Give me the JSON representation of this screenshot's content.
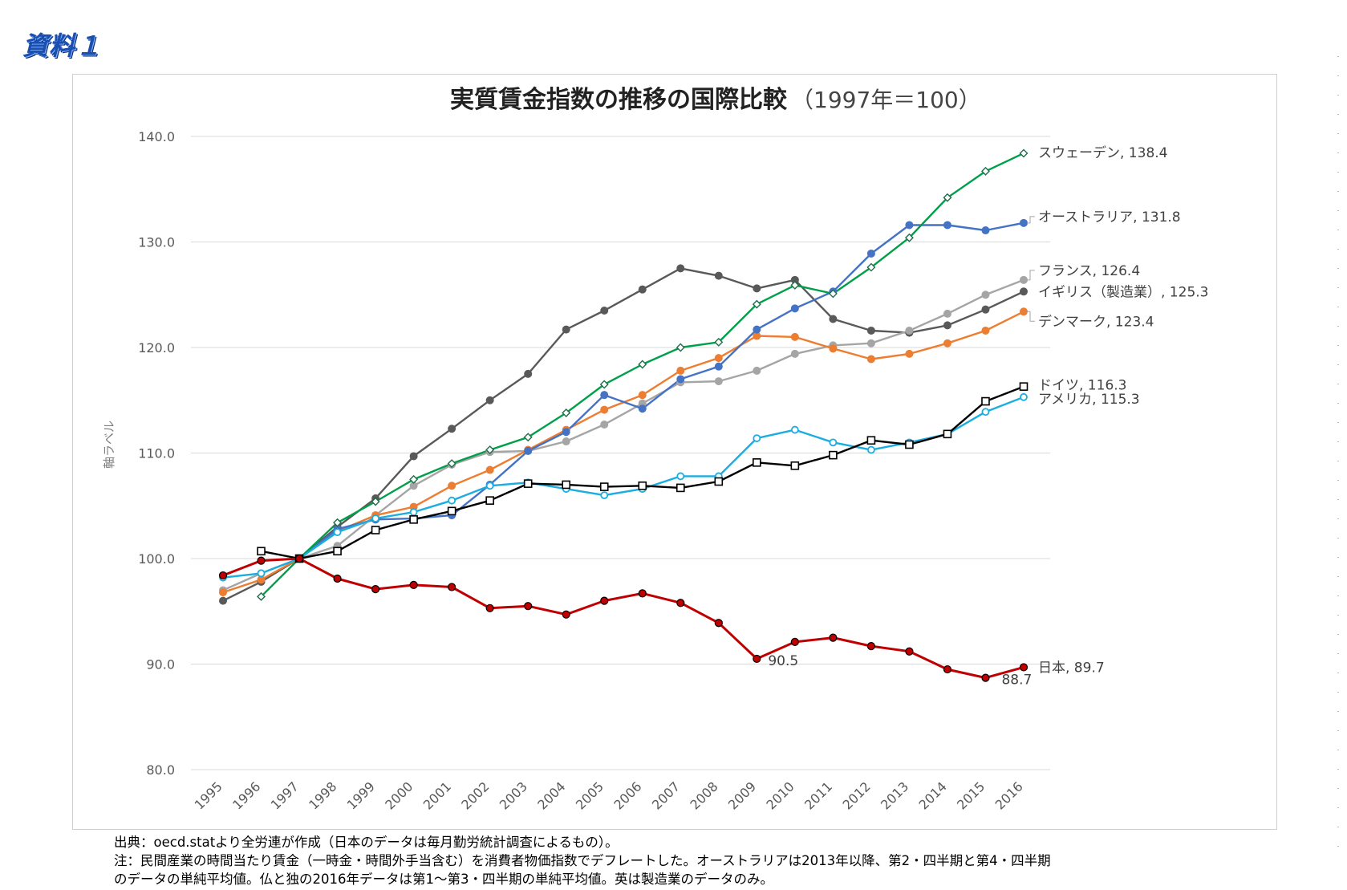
{
  "document_label": "資料１",
  "colors": {
    "sweden": "#00a04a",
    "australia": "#4472c4",
    "france": "#a5a5a5",
    "uk": "#595959",
    "denmark": "#ed7d31",
    "germany": "#000000",
    "usa": "#1aaee0",
    "japan": "#c00000",
    "grid": "#d9d9d9",
    "axis_text": "#595959"
  },
  "chart_data": {
    "type": "line",
    "title": "実質賃金指数の推移の国際比較",
    "subtitle": "（1997年＝100）",
    "ylabel": "軸ラベル",
    "xlabel": "",
    "ylim": [
      80,
      140
    ],
    "yticks": [
      "80.0",
      "90.0",
      "100.0",
      "110.0",
      "120.0",
      "130.0",
      "140.0"
    ],
    "categories": [
      "1995",
      "1996",
      "1997",
      "1998",
      "1999",
      "2000",
      "2001",
      "2002",
      "2003",
      "2004",
      "2005",
      "2006",
      "2007",
      "2008",
      "2009",
      "2010",
      "2011",
      "2012",
      "2013",
      "2014",
      "2015",
      "2016"
    ],
    "series": [
      {
        "key": "uk",
        "name": "イギリス（製造業）",
        "end_label": "イギリス（製造業）, 125.3",
        "marker": "circle",
        "values": [
          96.0,
          97.8,
          100.0,
          103.0,
          105.7,
          109.7,
          112.3,
          115.0,
          117.5,
          121.7,
          123.5,
          125.5,
          127.5,
          126.8,
          125.6,
          126.4,
          122.7,
          121.6,
          121.4,
          122.1,
          123.6,
          125.3
        ]
      },
      {
        "key": "france",
        "name": "フランス",
        "end_label": "フランス, 126.4",
        "marker": "circle",
        "values": [
          97.0,
          98.6,
          100.0,
          101.2,
          104.1,
          106.9,
          108.9,
          110.1,
          110.2,
          111.1,
          112.7,
          114.7,
          116.7,
          116.8,
          117.8,
          119.4,
          120.2,
          120.4,
          121.6,
          123.2,
          125.0,
          126.4
        ]
      },
      {
        "key": "denmark",
        "name": "デンマーク",
        "end_label": "デンマーク, 123.4",
        "marker": "circle",
        "values": [
          96.8,
          98.0,
          100.0,
          102.6,
          104.1,
          104.9,
          106.9,
          108.4,
          110.3,
          112.2,
          114.1,
          115.5,
          117.8,
          119.0,
          121.1,
          121.0,
          119.9,
          118.9,
          119.4,
          120.4,
          121.6,
          123.4
        ]
      },
      {
        "key": "australia",
        "name": "オーストラリア",
        "end_label": "オーストラリア, 131.8",
        "marker": "circle",
        "values": [
          null,
          null,
          100.0,
          102.8,
          103.7,
          103.8,
          104.1,
          107.0,
          110.2,
          112.0,
          115.5,
          114.2,
          117.0,
          118.2,
          121.7,
          123.7,
          125.3,
          128.9,
          131.6,
          131.6,
          131.1,
          131.8
        ]
      },
      {
        "key": "sweden",
        "name": "スウェーデン",
        "end_label": "スウェーデン, 138.4",
        "marker": "diamond",
        "values": [
          null,
          96.4,
          100.0,
          103.4,
          105.4,
          107.5,
          109.0,
          110.3,
          111.5,
          113.8,
          116.5,
          118.4,
          120.0,
          120.5,
          124.1,
          125.9,
          125.1,
          127.6,
          130.4,
          134.2,
          136.7,
          138.4
        ]
      },
      {
        "key": "usa",
        "name": "アメリカ",
        "end_label": "アメリカ, 115.3",
        "marker": "ring",
        "values": [
          98.2,
          98.6,
          100.0,
          102.5,
          103.8,
          104.4,
          105.5,
          106.9,
          107.2,
          106.6,
          106.0,
          106.6,
          107.8,
          107.8,
          111.4,
          112.2,
          111.0,
          110.3,
          111.0,
          111.8,
          113.9,
          115.3
        ]
      },
      {
        "key": "germany",
        "name": "ドイツ",
        "end_label": "ドイツ, 116.3",
        "marker": "square",
        "values": [
          null,
          100.7,
          100.0,
          100.7,
          102.7,
          103.7,
          104.5,
          105.5,
          107.1,
          107.0,
          106.8,
          106.9,
          106.7,
          107.3,
          109.1,
          108.8,
          109.8,
          111.2,
          110.8,
          111.8,
          114.9,
          116.3
        ]
      },
      {
        "key": "japan",
        "name": "日本",
        "end_label": "日本, 89.7",
        "marker": "redcircle",
        "values": [
          98.4,
          99.8,
          100.0,
          98.1,
          97.1,
          97.5,
          97.3,
          95.3,
          95.5,
          94.7,
          96.0,
          96.7,
          95.8,
          93.9,
          90.5,
          92.1,
          92.5,
          91.7,
          91.2,
          89.5,
          88.7,
          89.7
        ]
      }
    ],
    "annotations": [
      {
        "series": "japan",
        "category": "2009",
        "text": "90.5"
      },
      {
        "series": "japan",
        "category": "2015",
        "text": "88.7"
      }
    ]
  },
  "footnotes": [
    "出典：oecd.statより全労連が作成（日本のデータは毎月勤労統計調査によるもの）。",
    "注：民間産業の時間当たり賃金（一時金・時間外手当含む）を消費者物価指数でデフレートした。オーストラリアは2013年以降、第2・四半期と第4・四半期",
    "のデータの単純平均値。仏と独の2016年データは第1～第3・四半期の単純平均値。英は製造業のデータのみ。"
  ]
}
